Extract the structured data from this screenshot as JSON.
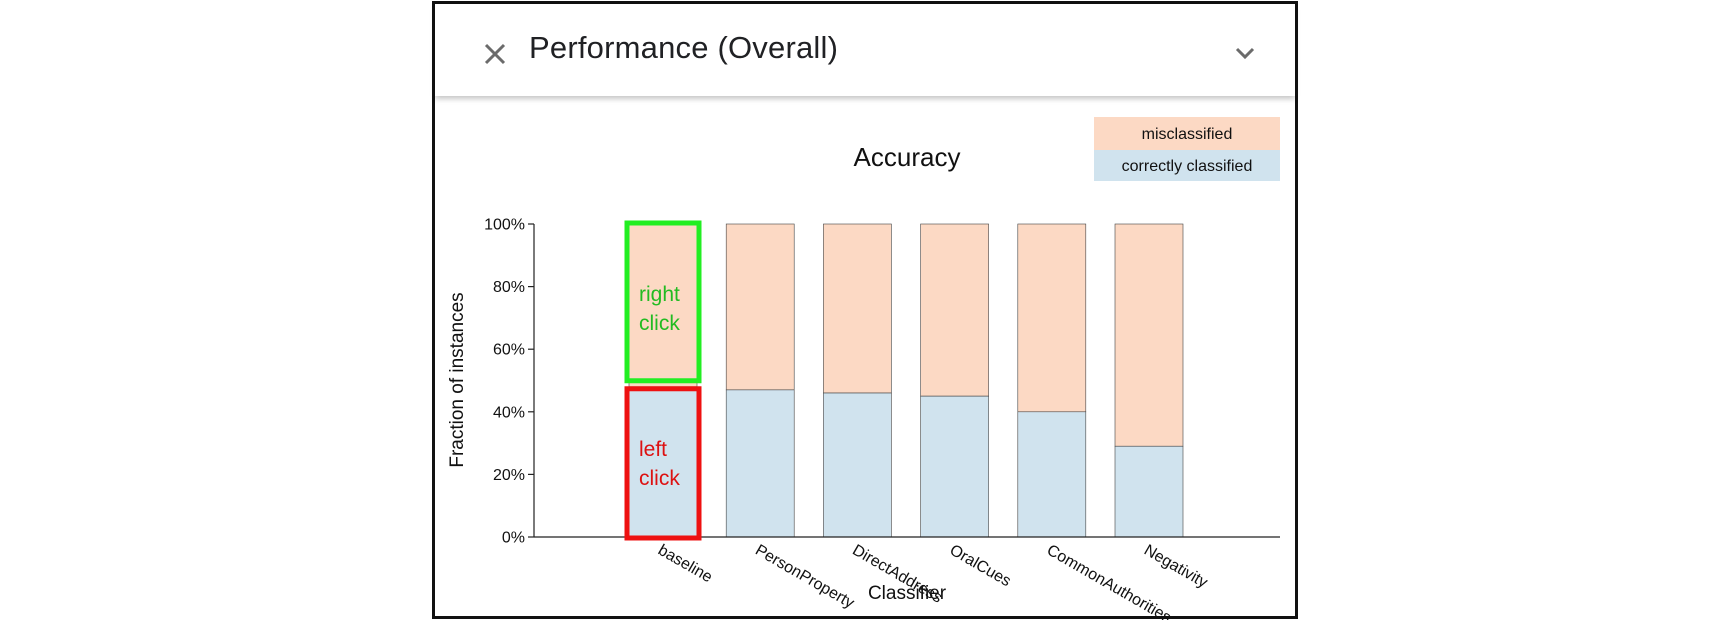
{
  "panel": {
    "title": "Performance (Overall)"
  },
  "icons": {
    "close": "close-icon",
    "expand": "chevron-down-icon"
  },
  "colors": {
    "misclassified": "#fcd9c4",
    "correctly_classified": "#d0e3ee",
    "right_click_box": "#22ee22",
    "left_click_box": "#ee1111",
    "right_click_text": "#22bb22",
    "left_click_text": "#dd1111"
  },
  "annotations": {
    "right_click": [
      "right",
      "click"
    ],
    "left_click": [
      "left",
      "click"
    ]
  },
  "chart_data": {
    "type": "bar",
    "stacked": true,
    "title": "Accuracy",
    "xlabel": "Classifier",
    "ylabel": "Fraction of instances",
    "ylim": [
      0,
      100
    ],
    "yticks": [
      "0%",
      "20%",
      "40%",
      "60%",
      "80%",
      "100%"
    ],
    "legend_position": "top-right",
    "categories": [
      "baseline",
      "PersonProperty",
      "DirectAddress",
      "OralCues",
      "CommonAuthorities",
      "Negativity"
    ],
    "series": [
      {
        "name": "correctly classified",
        "values": [
          48,
          47,
          46,
          45,
          40,
          29
        ]
      },
      {
        "name": "misclassified",
        "values": [
          52,
          53,
          54,
          55,
          60,
          71
        ]
      }
    ]
  }
}
